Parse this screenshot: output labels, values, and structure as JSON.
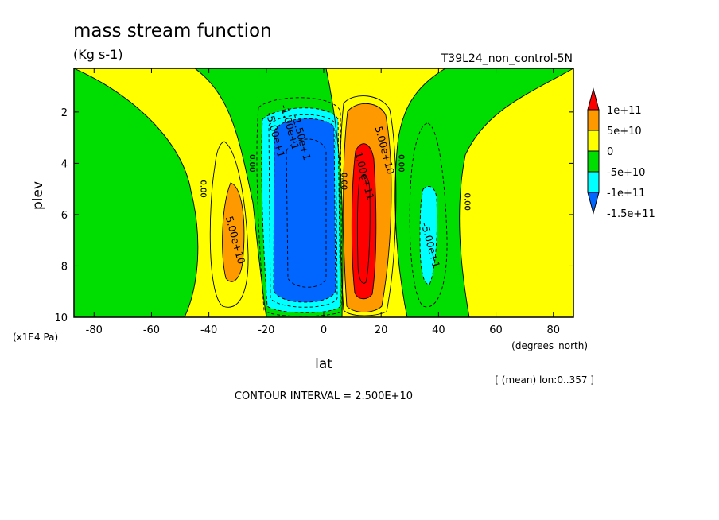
{
  "chart_data": {
    "type": "contour",
    "title": "mass stream function",
    "units": "(Kg s-1)",
    "subtitle_right": "T39L24_non_control-5N",
    "xlabel": "lat",
    "xunits": "(degrees_north)",
    "ylabel": "plev",
    "yunits": "(x1E4 Pa)",
    "xlim": [
      -87,
      87
    ],
    "ylim": [
      10,
      0.3
    ],
    "y_inverted": true,
    "x_ticks": [
      -80,
      -60,
      -40,
      -20,
      0,
      20,
      40,
      60,
      80
    ],
    "x_tick_labels": [
      "-80",
      "-60",
      "-40",
      "-20",
      "0",
      "20",
      "40",
      "60",
      "80"
    ],
    "y_ticks": [
      2,
      4,
      6,
      8,
      10
    ],
    "y_tick_labels": [
      "2",
      "4",
      "6",
      "8",
      "10"
    ],
    "mean_note": "[ (mean) lon:0..357 ]",
    "contour_interval_text": "CONTOUR INTERVAL = 2.500E+10",
    "colorbar": {
      "labels": [
        "1e+11",
        "5e+10",
        "0",
        "-5e+10",
        "-1e+11",
        "-1.5e+11"
      ],
      "colors": [
        "#ff0000",
        "#ff9900",
        "#ffff00",
        "#00dd00",
        "#00ffff",
        "#0066ff"
      ]
    },
    "contour_labels": [
      {
        "text": "5.00e+10",
        "lat": -31,
        "plev": 7.0
      },
      {
        "text": "-5.00e+1",
        "lat": -17,
        "plev": 2.9
      },
      {
        "text": "-1.00e+1",
        "lat": -12,
        "plev": 2.6
      },
      {
        "text": "-1.50e+1",
        "lat": -8,
        "plev": 3.0
      },
      {
        "text": "1.00e+11",
        "lat": 14,
        "plev": 4.5
      },
      {
        "text": "5.00e+10",
        "lat": 21,
        "plev": 3.5
      },
      {
        "text": "-5.00e+1",
        "lat": 37,
        "plev": 7.2
      },
      {
        "text": "0.00",
        "lat": -42,
        "plev": 5.0
      },
      {
        "text": "0.00",
        "lat": -25,
        "plev": 4.0
      },
      {
        "text": "0.00",
        "lat": 7,
        "plev": 4.7
      },
      {
        "text": "0.00",
        "lat": 27,
        "plev": 4.0
      },
      {
        "text": "0.00",
        "lat": 50,
        "plev": 5.5
      }
    ],
    "cells": [
      {
        "name": "southern-positive-cell",
        "center_lat": -31,
        "center_plev": 6.5,
        "peak": 55000000000.0
      },
      {
        "name": "tropical-negative-cell",
        "center_lat": -4,
        "center_plev": 5.5,
        "peak": -170000000000.0
      },
      {
        "name": "northern-positive-cell",
        "center_lat": 14,
        "center_plev": 6.0,
        "peak": 125000000000.0
      },
      {
        "name": "northern-negative-cell",
        "center_lat": 37,
        "center_plev": 6.5,
        "peak": -58000000000.0
      }
    ]
  }
}
